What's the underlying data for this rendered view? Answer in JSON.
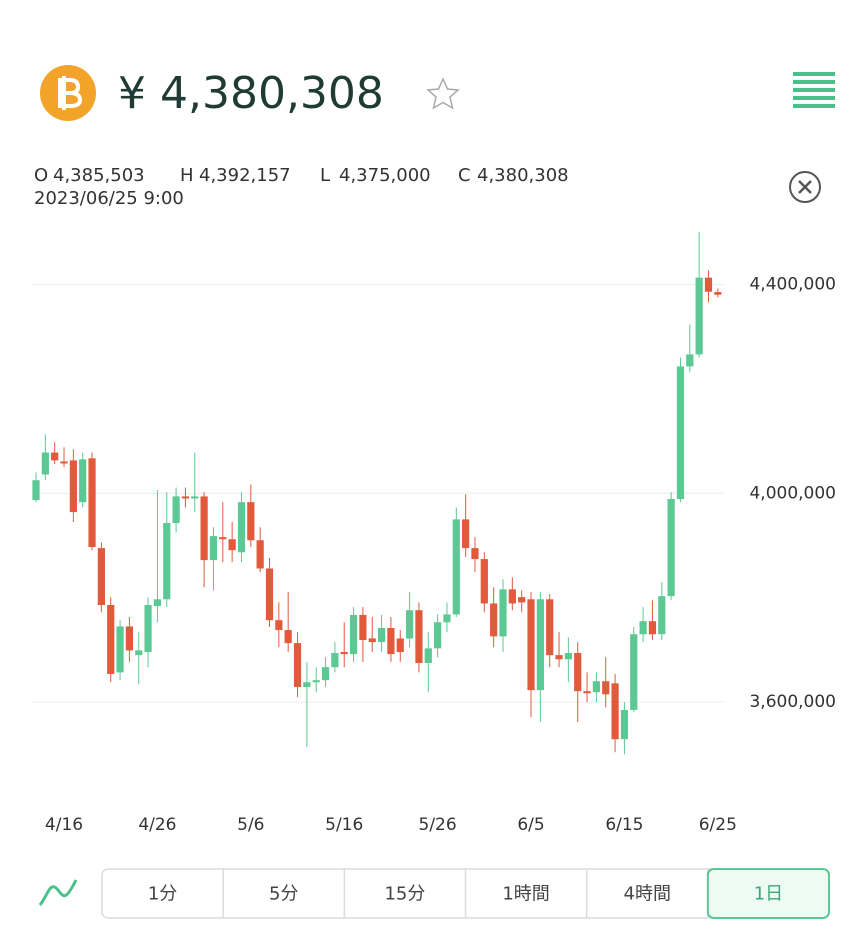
{
  "header": {
    "price": "¥ 4,380,308"
  },
  "ohlc": {
    "items": [
      {
        "key": "O",
        "value": "4,385,503"
      },
      {
        "key": "H",
        "value": "4,392,157"
      },
      {
        "key": "L",
        "value": "4,375,000"
      },
      {
        "key": "C",
        "value": "4,380,308"
      }
    ],
    "datetime": "2023/06/25 9:00"
  },
  "chart_data": {
    "type": "candlestick",
    "categories": [
      null,
      null,
      null,
      "4/16",
      null,
      null,
      null,
      null,
      null,
      null,
      null,
      null,
      null,
      "4/26",
      null,
      null,
      null,
      null,
      null,
      null,
      null,
      null,
      null,
      "5/6",
      null,
      null,
      null,
      null,
      null,
      null,
      null,
      null,
      null,
      "5/16",
      null,
      null,
      null,
      null,
      null,
      null,
      null,
      null,
      null,
      "5/26",
      null,
      null,
      null,
      null,
      null,
      null,
      null,
      null,
      null,
      "6/5",
      null,
      null,
      null,
      null,
      null,
      null,
      null,
      null,
      null,
      "6/15",
      null,
      null,
      null,
      null,
      null,
      null,
      null,
      null,
      null,
      "6/25"
    ],
    "open": [
      3987000,
      4036000,
      4078000,
      4061000,
      4063000,
      3983000,
      4067000,
      3895000,
      3786000,
      3657000,
      3745000,
      3690000,
      3696000,
      3784000,
      3797000,
      3943000,
      3994000,
      3990000,
      3994000,
      3872000,
      3916000,
      3912000,
      3887000,
      3983000,
      3910000,
      3856000,
      3757000,
      3738000,
      3713000,
      3629000,
      3638000,
      3642000,
      3667000,
      3696000,
      3692000,
      3767000,
      3722000,
      3715000,
      3742000,
      3722000,
      3722000,
      3776000,
      3675000,
      3703000,
      3753000,
      3768000,
      3950000,
      3895000,
      3874000,
      3789000,
      3726000,
      3816000,
      3801000,
      3797000,
      3623000,
      3797000,
      3690000,
      3682000,
      3694000,
      3621000,
      3619000,
      3640000,
      3636000,
      3529000,
      3585000,
      3730000,
      3755000,
      3730000,
      3803000,
      3989000,
      4243000,
      4266000,
      4413000,
      4385503
    ],
    "high": [
      4040000,
      4113000,
      4098000,
      4088000,
      4084000,
      4078000,
      4078000,
      3906000,
      3801000,
      3757000,
      3763000,
      3734000,
      3801000,
      4006000,
      4002000,
      4011000,
      4011000,
      4078000,
      4002000,
      3935000,
      3983000,
      3945000,
      4002000,
      4017000,
      3935000,
      3876000,
      3791000,
      3811000,
      3734000,
      3677000,
      3667000,
      3686000,
      3715000,
      3753000,
      3782000,
      3782000,
      3763000,
      3767000,
      3763000,
      3738000,
      3811000,
      3791000,
      3734000,
      3768000,
      3791000,
      3973000,
      3998000,
      3916000,
      3887000,
      3820000,
      3835000,
      3839000,
      3814000,
      3811000,
      3811000,
      3807000,
      3734000,
      3724000,
      3715000,
      3657000,
      3657000,
      3686000,
      3654000,
      3600000,
      3744000,
      3782000,
      3795000,
      3830000,
      4002000,
      4260000,
      4323000,
      4500000,
      4427000,
      4392157
    ],
    "low": [
      3983000,
      4025000,
      4056000,
      4050000,
      3945000,
      3973000,
      3891000,
      3772000,
      3638000,
      3642000,
      3677000,
      3634000,
      3667000,
      3753000,
      3782000,
      3925000,
      3973000,
      3964000,
      3820000,
      3814000,
      3868000,
      3868000,
      3868000,
      3897000,
      3849000,
      3744000,
      3705000,
      3696000,
      3610000,
      3514000,
      3619000,
      3629000,
      3657000,
      3667000,
      3677000,
      3677000,
      3696000,
      3696000,
      3677000,
      3677000,
      3705000,
      3657000,
      3619000,
      3686000,
      3734000,
      3763000,
      3878000,
      3849000,
      3772000,
      3705000,
      3696000,
      3776000,
      3772000,
      3571000,
      3562000,
      3667000,
      3667000,
      3638000,
      3562000,
      3600000,
      3600000,
      3590000,
      3504000,
      3500000,
      3581000,
      3715000,
      3719000,
      3719000,
      3795000,
      3983000,
      4232000,
      4260000,
      4366000,
      4375000
    ],
    "close": [
      4025000,
      4078000,
      4063000,
      4057000,
      3964000,
      4065000,
      3897000,
      3786000,
      3654000,
      3745000,
      3699000,
      3699000,
      3786000,
      3797000,
      3943000,
      3994000,
      3990000,
      3994000,
      3872000,
      3918000,
      3912000,
      3891000,
      3983000,
      3910000,
      3856000,
      3757000,
      3738000,
      3713000,
      3629000,
      3638000,
      3642000,
      3667000,
      3694000,
      3692000,
      3767000,
      3719000,
      3715000,
      3742000,
      3692000,
      3696000,
      3776000,
      3675000,
      3703000,
      3753000,
      3768000,
      3950000,
      3895000,
      3874000,
      3789000,
      3726000,
      3816000,
      3789000,
      3791000,
      3623000,
      3797000,
      3690000,
      3682000,
      3694000,
      3621000,
      3617000,
      3640000,
      3615000,
      3529000,
      3585000,
      3730000,
      3755000,
      3730000,
      3803000,
      3989000,
      4243000,
      4266000,
      4413000,
      4386000,
      4380308
    ],
    "up_color": "#5cc894",
    "down_color": "#e15a3c",
    "ylim": [
      3470000,
      4510000
    ],
    "yticks": [
      {
        "value": 3600000,
        "label": "3,600,000"
      },
      {
        "value": 4000000,
        "label": "4,000,000"
      },
      {
        "value": 4400000,
        "label": "4,400,000"
      }
    ],
    "grid": true
  },
  "timeframes": {
    "options": [
      "1分",
      "5分",
      "15分",
      "1時間",
      "4時間",
      "1日"
    ],
    "selected": 5
  }
}
